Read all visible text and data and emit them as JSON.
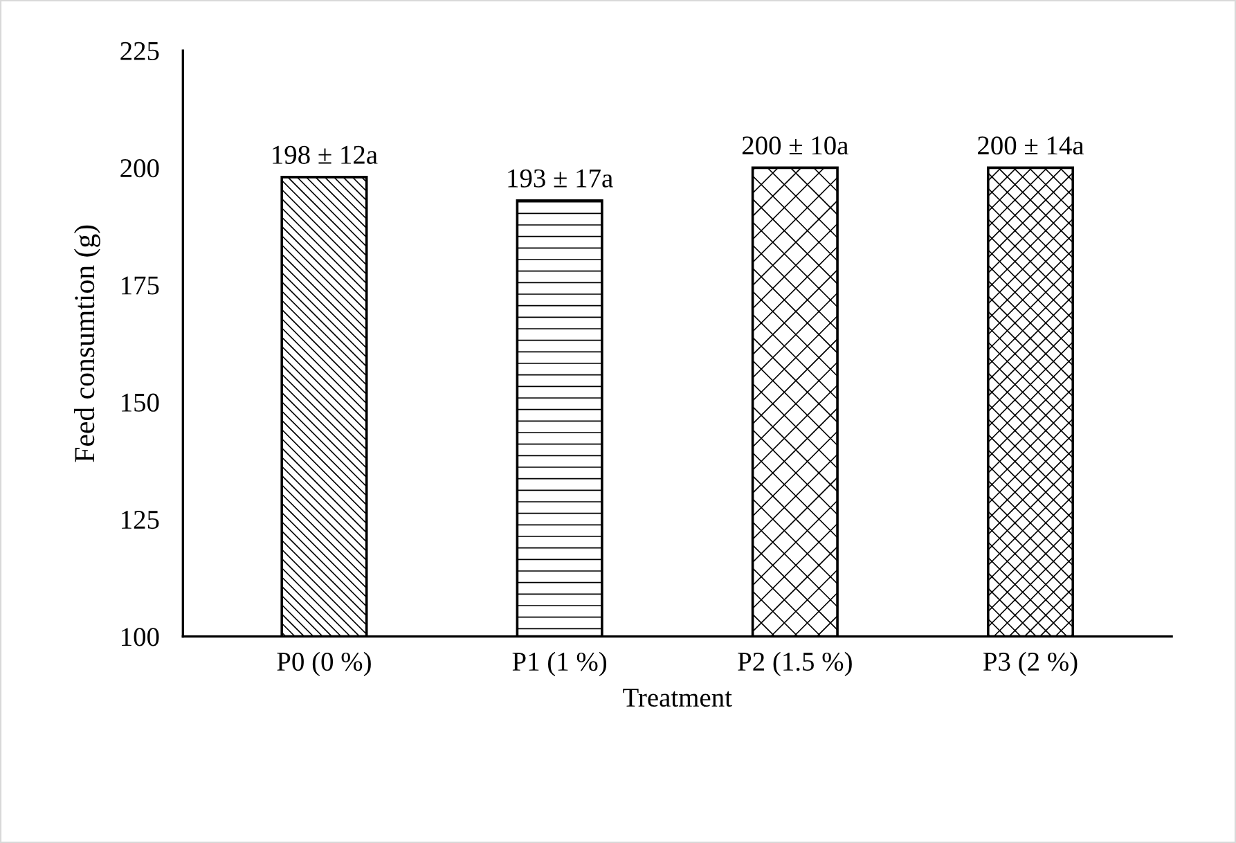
{
  "chart_data": {
    "type": "bar",
    "xlabel": "Treatment",
    "ylabel": "Feed consumtion (g)",
    "categories": [
      "P0 (0 %)",
      "P1 (1 %)",
      "P2 (1.5 %)",
      "P3 (2 %)"
    ],
    "values": [
      198,
      193,
      200,
      200
    ],
    "value_labels": [
      "198 ± 12a",
      "193 ± 17a",
      "200 ± 10a",
      "200 ± 14a"
    ],
    "color": "#000000",
    "ylim": [
      100,
      225
    ],
    "yticks": [
      100,
      125,
      150,
      175,
      200,
      225
    ],
    "grid": false,
    "legend": false
  }
}
